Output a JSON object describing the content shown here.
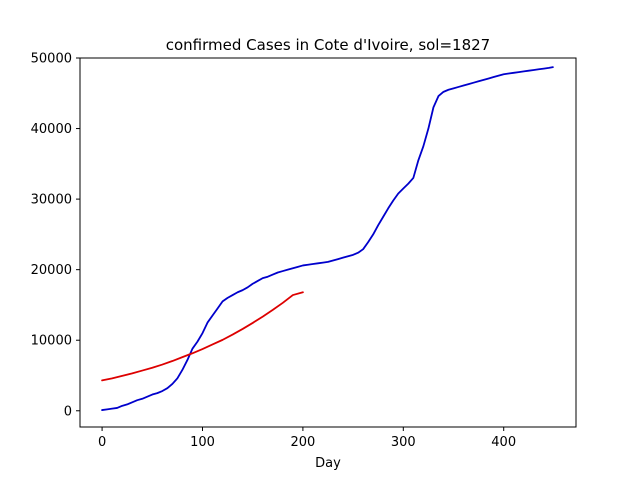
{
  "chart_data": {
    "type": "line",
    "title": "confirmed Cases in Cote d'Ivoire, sol=1827",
    "xlabel": "Day",
    "ylabel": "",
    "xlim": [
      -22,
      472
    ],
    "ylim": [
      -2300,
      50000
    ],
    "x_ticks": [
      0,
      100,
      200,
      300,
      400
    ],
    "y_ticks": [
      0,
      10000,
      20000,
      30000,
      40000,
      50000
    ],
    "grid": false,
    "legend": "none",
    "series": [
      {
        "color": "#0000cc",
        "x": [
          0,
          5,
          10,
          15,
          20,
          25,
          30,
          35,
          40,
          45,
          50,
          55,
          60,
          65,
          70,
          75,
          80,
          85,
          90,
          95,
          100,
          105,
          110,
          115,
          120,
          125,
          130,
          135,
          140,
          145,
          150,
          155,
          160,
          165,
          170,
          175,
          180,
          185,
          190,
          195,
          200,
          205,
          210,
          215,
          220,
          225,
          230,
          235,
          240,
          245,
          250,
          255,
          260,
          265,
          270,
          275,
          280,
          285,
          290,
          295,
          300,
          305,
          310,
          315,
          320,
          325,
          330,
          335,
          340,
          345,
          350,
          355,
          360,
          365,
          370,
          375,
          380,
          385,
          390,
          395,
          400,
          405,
          410,
          415,
          420,
          425,
          430,
          435,
          440,
          445,
          449
        ],
        "y": [
          100,
          200,
          300,
          400,
          700,
          900,
          1200,
          1500,
          1700,
          2000,
          2300,
          2500,
          2800,
          3200,
          3800,
          4600,
          5800,
          7200,
          8800,
          9800,
          11000,
          12500,
          13500,
          14500,
          15500,
          16000,
          16400,
          16800,
          17100,
          17500,
          18000,
          18400,
          18800,
          19000,
          19300,
          19600,
          19800,
          20000,
          20200,
          20400,
          20600,
          20700,
          20800,
          20900,
          21000,
          21100,
          21300,
          21500,
          21700,
          21900,
          22100,
          22400,
          22900,
          23900,
          25000,
          26300,
          27500,
          28700,
          29800,
          30800,
          31500,
          32200,
          33000,
          35500,
          37500,
          40000,
          43000,
          44600,
          45200,
          45500,
          45700,
          45900,
          46100,
          46300,
          46500,
          46700,
          46900,
          47100,
          47300,
          47500,
          47700,
          47800,
          47900,
          48000,
          48100,
          48200,
          48300,
          48400,
          48500,
          48600,
          48700
        ]
      },
      {
        "color": "#dd0000",
        "x": [
          0,
          10,
          20,
          30,
          40,
          50,
          60,
          70,
          80,
          90,
          100,
          110,
          120,
          130,
          140,
          150,
          160,
          170,
          180,
          190,
          200
        ],
        "y": [
          4300,
          4600,
          4950,
          5300,
          5700,
          6100,
          6550,
          7050,
          7600,
          8150,
          8750,
          9400,
          10050,
          10800,
          11600,
          12450,
          13350,
          14300,
          15300,
          16400,
          16800
        ]
      }
    ]
  }
}
